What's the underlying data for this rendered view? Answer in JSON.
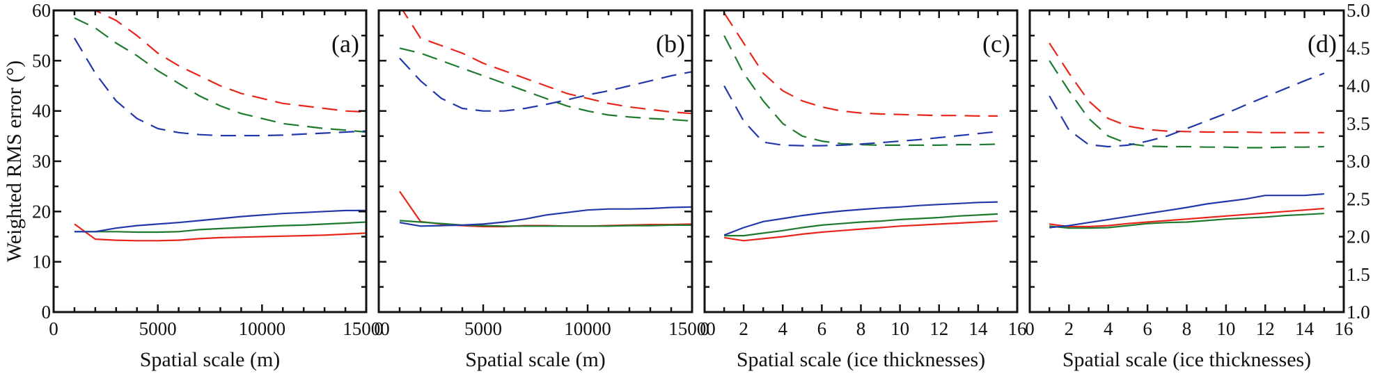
{
  "figure": {
    "ylabel": "Weighted RMS error (°)",
    "right_axis_ticks": [
      "1.0",
      "1.5",
      "2.0",
      "2.5",
      "3.0",
      "3.5",
      "4.0",
      "4.5",
      "5.0"
    ]
  },
  "chart_data": [
    {
      "type": "line",
      "panel": "(a)",
      "title": "",
      "xlabel": "Spatial scale (m)",
      "ylabel": "Weighted RMS error (°)",
      "xlim": [
        0,
        15000
      ],
      "ylim": [
        0,
        60
      ],
      "xticks": [
        "0",
        "5000",
        "10000",
        "15000"
      ],
      "xtick_values": [
        0,
        5000,
        10000,
        15000
      ],
      "xminor_step": 1000,
      "yticks": [
        "0",
        "10",
        "20",
        "30",
        "40",
        "50",
        "60"
      ],
      "ytick_values": [
        0,
        10,
        20,
        30,
        40,
        50,
        60
      ],
      "yminor_step": 5,
      "grid": false,
      "x": [
        1000,
        2000,
        3000,
        4000,
        5000,
        6000,
        7000,
        8000,
        9000,
        10000,
        11000,
        12000,
        13000,
        14000,
        15000
      ],
      "series": [
        {
          "name": "red-dashed",
          "color": "#e8251a",
          "style": "dashed",
          "values": [
            65,
            60,
            58,
            55,
            51.5,
            49,
            47,
            45,
            43.5,
            42.5,
            41.5,
            41,
            40.5,
            40,
            39.8
          ]
        },
        {
          "name": "green-dashed",
          "color": "#1e7a2e",
          "style": "dashed",
          "values": [
            58.5,
            56.5,
            53.5,
            51,
            48,
            45.5,
            43,
            41,
            39.5,
            38.5,
            37.5,
            37,
            36.5,
            36.2,
            35.8
          ]
        },
        {
          "name": "blue-dashed",
          "color": "#2238a8",
          "style": "dashed",
          "values": [
            54.5,
            47.5,
            42,
            38.5,
            36.5,
            35.7,
            35.3,
            35.1,
            35.1,
            35.1,
            35.2,
            35.4,
            35.6,
            35.8,
            36
          ]
        },
        {
          "name": "red-solid",
          "color": "#e8251a",
          "style": "solid",
          "values": [
            17.5,
            14.5,
            14.3,
            14.2,
            14.2,
            14.3,
            14.6,
            14.8,
            14.9,
            15,
            15.1,
            15.2,
            15.3,
            15.5,
            15.7
          ]
        },
        {
          "name": "green-solid",
          "color": "#1e7a2e",
          "style": "solid",
          "values": [
            16,
            16,
            16,
            15.9,
            15.9,
            16,
            16.4,
            16.6,
            16.8,
            17,
            17.2,
            17.3,
            17.5,
            17.7,
            17.9
          ]
        },
        {
          "name": "blue-solid",
          "color": "#2238a8",
          "style": "solid",
          "values": [
            16,
            16,
            16.7,
            17.2,
            17.5,
            17.8,
            18.2,
            18.6,
            19,
            19.3,
            19.6,
            19.8,
            20,
            20.2,
            20.2
          ]
        }
      ]
    },
    {
      "type": "line",
      "panel": "(b)",
      "title": "",
      "xlabel": "Spatial scale (m)",
      "ylabel": "",
      "xlim": [
        0,
        15000
      ],
      "ylim": [
        0,
        60
      ],
      "xticks": [
        "0",
        "5000",
        "10000",
        "15000"
      ],
      "xtick_values": [
        0,
        5000,
        10000,
        15000
      ],
      "xminor_step": 1000,
      "yticks": [],
      "ytick_values": [
        0,
        10,
        20,
        30,
        40,
        50,
        60
      ],
      "yminor_step": 5,
      "grid": false,
      "x": [
        1000,
        2000,
        3000,
        4000,
        5000,
        6000,
        7000,
        8000,
        9000,
        10000,
        11000,
        12000,
        13000,
        14000,
        15000
      ],
      "series": [
        {
          "name": "red-dashed",
          "color": "#e8251a",
          "style": "dashed",
          "values": [
            61,
            54.5,
            53,
            51.5,
            49.5,
            48,
            46.5,
            45,
            43.5,
            42.5,
            41.5,
            40.8,
            40.3,
            39.8,
            39.5
          ]
        },
        {
          "name": "green-dashed",
          "color": "#1e7a2e",
          "style": "dashed",
          "values": [
            52.5,
            51.5,
            50,
            48.5,
            47,
            45.5,
            44,
            42.5,
            41,
            40,
            39.2,
            38.8,
            38.5,
            38.3,
            38
          ]
        },
        {
          "name": "blue-dashed",
          "color": "#2238a8",
          "style": "dashed",
          "values": [
            50.5,
            46,
            42.5,
            40.5,
            40,
            40,
            40.5,
            41.3,
            42.2,
            43.2,
            44,
            45,
            46,
            47,
            47.8
          ]
        },
        {
          "name": "red-solid",
          "color": "#e8251a",
          "style": "solid",
          "values": [
            24,
            18,
            17.5,
            17.2,
            17,
            17,
            17.2,
            17.2,
            17.1,
            17.1,
            17.2,
            17.3,
            17.4,
            17.4,
            17.5
          ]
        },
        {
          "name": "green-solid",
          "color": "#1e7a2e",
          "style": "solid",
          "values": [
            18.2,
            17.9,
            17.6,
            17.3,
            17.2,
            17.1,
            17.1,
            17.1,
            17.1,
            17.1,
            17.1,
            17.2,
            17.2,
            17.3,
            17.3
          ]
        },
        {
          "name": "blue-solid",
          "color": "#2238a8",
          "style": "solid",
          "values": [
            17.8,
            17.1,
            17.2,
            17.3,
            17.5,
            17.9,
            18.5,
            19.3,
            19.8,
            20.3,
            20.5,
            20.5,
            20.6,
            20.8,
            20.9
          ]
        }
      ]
    },
    {
      "type": "line",
      "panel": "(c)",
      "title": "",
      "xlabel": "Spatial scale (ice thicknesses)",
      "ylabel": "",
      "xlim": [
        0,
        16
      ],
      "ylim": [
        0,
        60
      ],
      "xticks": [
        "0",
        "2",
        "4",
        "6",
        "8",
        "10",
        "12",
        "14",
        "16"
      ],
      "xtick_values": [
        0,
        2,
        4,
        6,
        8,
        10,
        12,
        14,
        16
      ],
      "xminor_step": 1,
      "yticks": [],
      "ytick_values": [
        0,
        10,
        20,
        30,
        40,
        50,
        60
      ],
      "yminor_step": 5,
      "grid": false,
      "x": [
        1,
        2,
        3,
        4,
        5,
        6,
        7,
        8,
        9,
        10,
        11,
        12,
        13,
        14,
        15
      ],
      "series": [
        {
          "name": "red-dashed",
          "color": "#e8251a",
          "style": "dashed",
          "values": [
            59.5,
            53.5,
            47.5,
            44,
            42,
            40.8,
            40,
            39.6,
            39.4,
            39.3,
            39.2,
            39.1,
            39.1,
            39,
            39
          ]
        },
        {
          "name": "green-dashed",
          "color": "#1e7a2e",
          "style": "dashed",
          "values": [
            55,
            47.5,
            42,
            37.5,
            35,
            34,
            33.5,
            33.3,
            33.2,
            33.2,
            33.2,
            33.2,
            33.3,
            33.3,
            33.4
          ]
        },
        {
          "name": "blue-dashed",
          "color": "#2238a8",
          "style": "dashed",
          "values": [
            45,
            38,
            33.8,
            33.2,
            33.1,
            33.1,
            33.2,
            33.4,
            33.7,
            34,
            34.3,
            34.7,
            35.1,
            35.5,
            35.9
          ]
        },
        {
          "name": "red-solid",
          "color": "#e8251a",
          "style": "solid",
          "values": [
            14.8,
            14.2,
            14.6,
            15,
            15.5,
            15.9,
            16.2,
            16.5,
            16.8,
            17.1,
            17.3,
            17.5,
            17.7,
            17.9,
            18.1
          ]
        },
        {
          "name": "green-solid",
          "color": "#1e7a2e",
          "style": "solid",
          "values": [
            15.2,
            15.2,
            15.7,
            16.2,
            16.8,
            17.3,
            17.6,
            17.9,
            18.1,
            18.4,
            18.6,
            18.8,
            19.1,
            19.3,
            19.5
          ]
        },
        {
          "name": "blue-solid",
          "color": "#2238a8",
          "style": "solid",
          "values": [
            15.3,
            16.8,
            18,
            18.6,
            19.2,
            19.7,
            20.1,
            20.4,
            20.7,
            20.9,
            21.2,
            21.4,
            21.6,
            21.8,
            21.9
          ]
        }
      ]
    },
    {
      "type": "line",
      "panel": "(d)",
      "title": "",
      "xlabel": "Spatial scale (ice thicknesses)",
      "ylabel": "",
      "xlim": [
        0,
        16
      ],
      "ylim": [
        0,
        60
      ],
      "y2lim": [
        1.0,
        5.0
      ],
      "xticks": [
        "0",
        "2",
        "4",
        "6",
        "8",
        "10",
        "12",
        "14",
        "16"
      ],
      "xtick_values": [
        0,
        2,
        4,
        6,
        8,
        10,
        12,
        14,
        16
      ],
      "xminor_step": 1,
      "yticks": [],
      "ytick_values": [
        0,
        10,
        20,
        30,
        40,
        50,
        60
      ],
      "yminor_step": 5,
      "y2ticks": [
        "1.0",
        "1.5",
        "2.0",
        "2.5",
        "3.0",
        "3.5",
        "4.0",
        "4.5",
        "5.0"
      ],
      "grid": false,
      "x": [
        1,
        2,
        3,
        4,
        5,
        6,
        7,
        8,
        9,
        10,
        11,
        12,
        13,
        14,
        15
      ],
      "series": [
        {
          "name": "red-dashed",
          "color": "#e8251a",
          "style": "dashed",
          "values": [
            53.5,
            47.5,
            42,
            38.5,
            37,
            36.3,
            36,
            35.9,
            35.8,
            35.8,
            35.8,
            35.7,
            35.7,
            35.7,
            35.7
          ]
        },
        {
          "name": "green-dashed",
          "color": "#1e7a2e",
          "style": "dashed",
          "values": [
            50,
            44,
            38.5,
            35,
            33.5,
            33,
            32.9,
            32.9,
            32.8,
            32.8,
            32.7,
            32.7,
            32.8,
            32.8,
            32.9
          ]
        },
        {
          "name": "blue-dashed",
          "color": "#2238a8",
          "style": "dashed",
          "values": [
            43,
            36.2,
            33.3,
            32.9,
            33.2,
            34,
            35,
            36.5,
            38,
            39.5,
            41.2,
            42.8,
            44.4,
            46,
            47.5
          ]
        },
        {
          "name": "red-solid",
          "color": "#e8251a",
          "style": "solid",
          "values": [
            17.5,
            17,
            17,
            17.2,
            17.6,
            17.9,
            18.2,
            18.5,
            18.8,
            19.1,
            19.4,
            19.7,
            20,
            20.3,
            20.6
          ]
        },
        {
          "name": "green-solid",
          "color": "#1e7a2e",
          "style": "solid",
          "values": [
            17.1,
            16.7,
            16.7,
            16.8,
            17.2,
            17.6,
            17.8,
            17.9,
            18.2,
            18.5,
            18.7,
            18.9,
            19.2,
            19.4,
            19.6
          ]
        },
        {
          "name": "blue-solid",
          "color": "#2238a8",
          "style": "solid",
          "values": [
            16.8,
            17.2,
            17.8,
            18.4,
            19,
            19.6,
            20.2,
            20.8,
            21.5,
            22,
            22.5,
            23.2,
            23.2,
            23.2,
            23.5
          ]
        }
      ]
    }
  ]
}
